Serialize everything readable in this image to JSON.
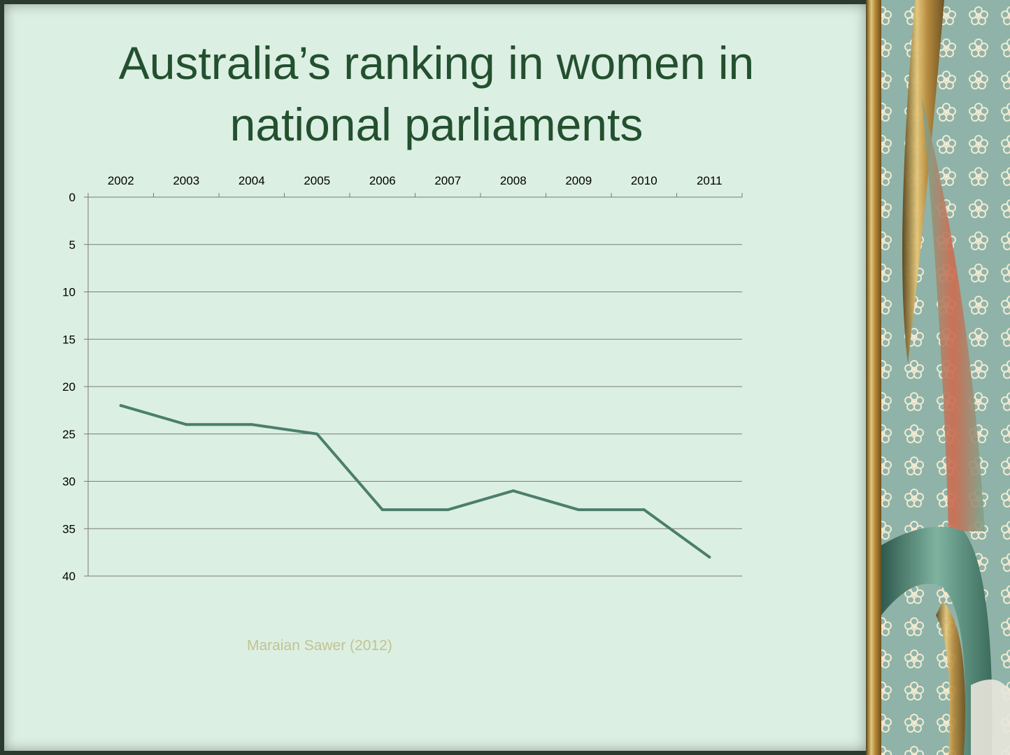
{
  "slide": {
    "title_line1": "Australia’s ranking in women in",
    "title_line2": "national parliaments",
    "source": "Maraian Sawer (2012)"
  },
  "chart_data": {
    "type": "line",
    "title": "Australia’s ranking in women in national parliaments",
    "xlabel": "",
    "ylabel": "",
    "categories": [
      "2002",
      "2003",
      "2004",
      "2005",
      "2006",
      "2007",
      "2008",
      "2009",
      "2010",
      "2011"
    ],
    "values": [
      22,
      24,
      24,
      25,
      33,
      33,
      31,
      33,
      33,
      38
    ],
    "y_ticks": [
      "0",
      "5",
      "10",
      "15",
      "20",
      "25",
      "30",
      "35",
      "40"
    ],
    "ylim": [
      0,
      40
    ],
    "y_inverted": true,
    "x_axis_position": "top",
    "grid": true,
    "legend": "none",
    "line_color": "#4a7f6c",
    "grid_color": "#7a7a7a"
  },
  "theme": {
    "panel_color": "#dcefe3",
    "title_color": "#23502f",
    "source_color": "#c2c38e",
    "gold": "#c9a04a",
    "teal": "#8fb3a8"
  }
}
